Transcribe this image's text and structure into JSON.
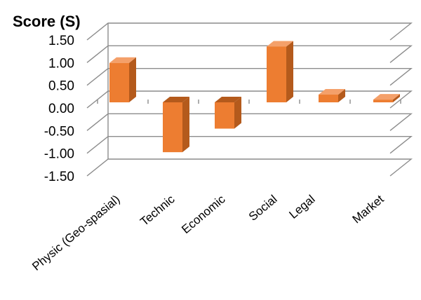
{
  "chart_data": {
    "type": "bar",
    "ylabel": "Score (S)",
    "categories": [
      "Physic (Geo-spasial)",
      "Technic",
      "Economic",
      "Social",
      "Legal",
      "Market"
    ],
    "values": [
      0.87,
      -1.1,
      -0.58,
      1.23,
      0.17,
      0.06
    ],
    "ylim": [
      -1.5,
      1.5
    ],
    "yticks": [
      "1.50",
      "1.00",
      "0.50",
      "0.00",
      "-0.50",
      "-1.00",
      "-1.50"
    ],
    "grid": true,
    "legend": "none",
    "bar_color": "#ED7D31",
    "bar_side_color": "#B45A1C",
    "bar_top_color": "#F4A06A"
  }
}
